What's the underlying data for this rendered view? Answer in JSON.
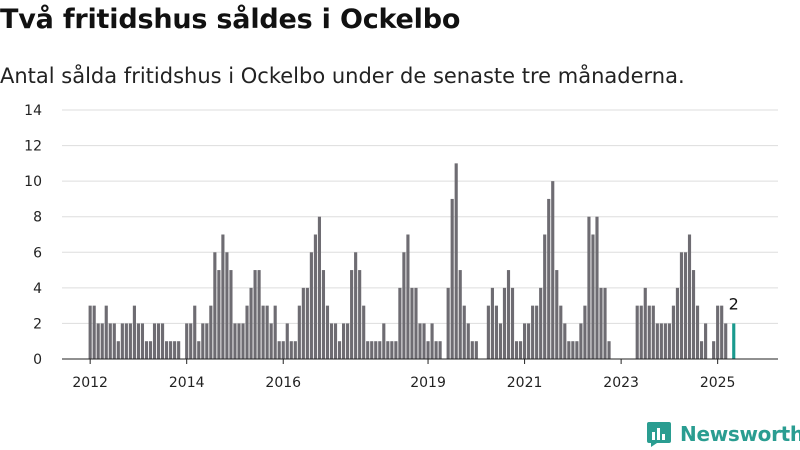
{
  "title": "Två fritidshus såldes i Ockelbo",
  "subtitle": "Antal sålda fritidshus i Ockelbo under de senaste tre månaderna.",
  "brand": {
    "name": "Newsworthy",
    "color": "#2a9d91"
  },
  "colors": {
    "bar": "#6e6c72",
    "highlight": "#1a9a8e",
    "grid": "#dddddd"
  },
  "chart_data": {
    "type": "bar",
    "title": "Två fritidshus såldes i Ockelbo",
    "subtitle": "Antal sålda fritidshus i Ockelbo under de senaste tre månaderna.",
    "xlabel": "",
    "ylabel": "",
    "ylim": [
      0,
      14
    ],
    "yticks": [
      0,
      2,
      4,
      6,
      8,
      10,
      12,
      14
    ],
    "xticks": [
      "2012",
      "2014",
      "2016",
      "2019",
      "2021",
      "2023",
      "2025"
    ],
    "x_range": [
      "2011-06",
      "2026-04"
    ],
    "grid": true,
    "legend": "none",
    "highlight_label": "2",
    "series": [
      {
        "points": [
          [
            "2012-01",
            3
          ],
          [
            "2012-02",
            3
          ],
          [
            "2012-03",
            2
          ],
          [
            "2012-04",
            2
          ],
          [
            "2012-05",
            3
          ],
          [
            "2012-06",
            2
          ],
          [
            "2012-07",
            2
          ],
          [
            "2012-08",
            1
          ],
          [
            "2012-09",
            2
          ],
          [
            "2012-10",
            2
          ],
          [
            "2012-11",
            2
          ],
          [
            "2012-12",
            3
          ],
          [
            "2013-01",
            2
          ],
          [
            "2013-02",
            2
          ],
          [
            "2013-03",
            1
          ],
          [
            "2013-04",
            1
          ],
          [
            "2013-05",
            2
          ],
          [
            "2013-06",
            2
          ],
          [
            "2013-07",
            2
          ],
          [
            "2013-08",
            1
          ],
          [
            "2013-09",
            1
          ],
          [
            "2013-10",
            1
          ],
          [
            "2013-11",
            1
          ],
          [
            "2013-12",
            0
          ],
          [
            "2014-01",
            2
          ],
          [
            "2014-02",
            2
          ],
          [
            "2014-03",
            3
          ],
          [
            "2014-04",
            1
          ],
          [
            "2014-05",
            2
          ],
          [
            "2014-06",
            2
          ],
          [
            "2014-07",
            3
          ],
          [
            "2014-08",
            6
          ],
          [
            "2014-09",
            5
          ],
          [
            "2014-10",
            7
          ],
          [
            "2014-11",
            6
          ],
          [
            "2014-12",
            5
          ],
          [
            "2015-01",
            2
          ],
          [
            "2015-02",
            2
          ],
          [
            "2015-03",
            2
          ],
          [
            "2015-04",
            3
          ],
          [
            "2015-05",
            4
          ],
          [
            "2015-06",
            5
          ],
          [
            "2015-07",
            5
          ],
          [
            "2015-08",
            3
          ],
          [
            "2015-09",
            3
          ],
          [
            "2015-10",
            2
          ],
          [
            "2015-11",
            3
          ],
          [
            "2015-12",
            1
          ],
          [
            "2016-01",
            1
          ],
          [
            "2016-02",
            2
          ],
          [
            "2016-03",
            1
          ],
          [
            "2016-04",
            1
          ],
          [
            "2016-05",
            3
          ],
          [
            "2016-06",
            4
          ],
          [
            "2016-07",
            4
          ],
          [
            "2016-08",
            6
          ],
          [
            "2016-09",
            7
          ],
          [
            "2016-10",
            8
          ],
          [
            "2016-11",
            5
          ],
          [
            "2016-12",
            3
          ],
          [
            "2017-01",
            2
          ],
          [
            "2017-02",
            2
          ],
          [
            "2017-03",
            1
          ],
          [
            "2017-04",
            2
          ],
          [
            "2017-05",
            2
          ],
          [
            "2017-06",
            5
          ],
          [
            "2017-07",
            6
          ],
          [
            "2017-08",
            5
          ],
          [
            "2017-09",
            3
          ],
          [
            "2017-10",
            1
          ],
          [
            "2017-11",
            1
          ],
          [
            "2017-12",
            1
          ],
          [
            "2018-01",
            1
          ],
          [
            "2018-02",
            2
          ],
          [
            "2018-03",
            1
          ],
          [
            "2018-04",
            1
          ],
          [
            "2018-05",
            1
          ],
          [
            "2018-06",
            4
          ],
          [
            "2018-07",
            6
          ],
          [
            "2018-08",
            7
          ],
          [
            "2018-09",
            4
          ],
          [
            "2018-10",
            4
          ],
          [
            "2018-11",
            2
          ],
          [
            "2018-12",
            2
          ],
          [
            "2019-01",
            1
          ],
          [
            "2019-02",
            2
          ],
          [
            "2019-03",
            1
          ],
          [
            "2019-04",
            1
          ],
          [
            "2019-05",
            0
          ],
          [
            "2019-06",
            4
          ],
          [
            "2019-07",
            9
          ],
          [
            "2019-08",
            11
          ],
          [
            "2019-09",
            5
          ],
          [
            "2019-10",
            3
          ],
          [
            "2019-11",
            2
          ],
          [
            "2019-12",
            1
          ],
          [
            "2020-01",
            1
          ],
          [
            "2020-02",
            0
          ],
          [
            "2020-03",
            0
          ],
          [
            "2020-04",
            3
          ],
          [
            "2020-05",
            4
          ],
          [
            "2020-06",
            3
          ],
          [
            "2020-07",
            2
          ],
          [
            "2020-08",
            4
          ],
          [
            "2020-09",
            5
          ],
          [
            "2020-10",
            4
          ],
          [
            "2020-11",
            1
          ],
          [
            "2020-12",
            1
          ],
          [
            "2021-01",
            2
          ],
          [
            "2021-02",
            2
          ],
          [
            "2021-03",
            3
          ],
          [
            "2021-04",
            3
          ],
          [
            "2021-05",
            4
          ],
          [
            "2021-06",
            7
          ],
          [
            "2021-07",
            9
          ],
          [
            "2021-08",
            10
          ],
          [
            "2021-09",
            5
          ],
          [
            "2021-10",
            3
          ],
          [
            "2021-11",
            2
          ],
          [
            "2021-12",
            1
          ],
          [
            "2022-01",
            1
          ],
          [
            "2022-02",
            1
          ],
          [
            "2022-03",
            2
          ],
          [
            "2022-04",
            3
          ],
          [
            "2022-05",
            8
          ],
          [
            "2022-06",
            7
          ],
          [
            "2022-07",
            8
          ],
          [
            "2022-08",
            4
          ],
          [
            "2022-09",
            4
          ],
          [
            "2022-10",
            1
          ],
          [
            "2022-11",
            0
          ],
          [
            "2022-12",
            0
          ],
          [
            "2023-01",
            0
          ],
          [
            "2023-02",
            0
          ],
          [
            "2023-03",
            0
          ],
          [
            "2023-04",
            0
          ],
          [
            "2023-05",
            3
          ],
          [
            "2023-06",
            3
          ],
          [
            "2023-07",
            4
          ],
          [
            "2023-08",
            3
          ],
          [
            "2023-09",
            3
          ],
          [
            "2023-10",
            2
          ],
          [
            "2023-11",
            2
          ],
          [
            "2023-12",
            2
          ],
          [
            "2024-01",
            2
          ],
          [
            "2024-02",
            3
          ],
          [
            "2024-03",
            4
          ],
          [
            "2024-04",
            6
          ],
          [
            "2024-05",
            6
          ],
          [
            "2024-06",
            7
          ],
          [
            "2024-07",
            5
          ],
          [
            "2024-08",
            3
          ],
          [
            "2024-09",
            1
          ],
          [
            "2024-10",
            2
          ],
          [
            "2024-11",
            0
          ],
          [
            "2024-12",
            1
          ],
          [
            "2025-01",
            3
          ],
          [
            "2025-02",
            3
          ],
          [
            "2025-03",
            2
          ],
          [
            "2025-04",
            0
          ],
          [
            "2025-05",
            2
          ]
        ]
      }
    ]
  }
}
